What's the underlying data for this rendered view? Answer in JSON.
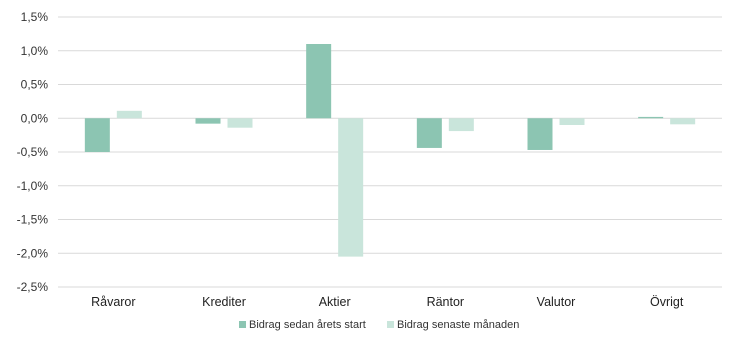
{
  "chart_data": {
    "type": "bar",
    "categories": [
      "Råvaror",
      "Krediter",
      "Aktier",
      "Räntor",
      "Valutor",
      "Övrigt"
    ],
    "series": [
      {
        "name": "Bidrag sedan årets start",
        "color": "#8cc5b2",
        "values": [
          -0.5,
          -0.08,
          1.1,
          -0.44,
          -0.47,
          0.02
        ]
      },
      {
        "name": "Bidrag senaste månaden",
        "color": "#c9e5db",
        "values": [
          0.11,
          -0.14,
          -2.05,
          -0.19,
          -0.1,
          -0.09
        ]
      }
    ],
    "y_ticks": [
      "1,5%",
      "1,0%",
      "0,5%",
      "0,0%",
      "-0,5%",
      "-1,0%",
      "-1,5%",
      "-2,0%",
      "-2,5%"
    ],
    "ylim": [
      -2.5,
      1.5
    ],
    "grid": true,
    "legend_position": "bottom",
    "title": "",
    "xlabel": "",
    "ylabel": ""
  }
}
